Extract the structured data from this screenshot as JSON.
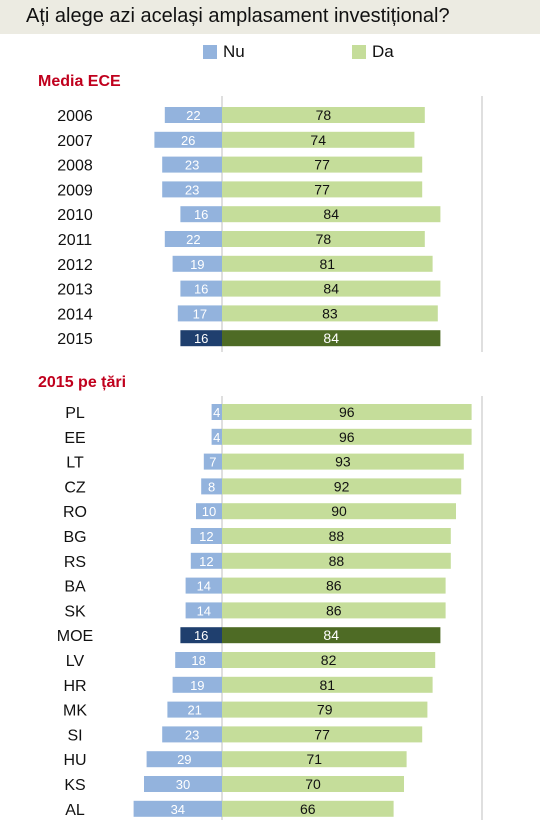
{
  "title": "Ați alege azi același amplasament investițional?",
  "legend": {
    "nu": "Nu",
    "da": "Da"
  },
  "colors": {
    "nu": "#93b3dd",
    "da": "#c5dd9a",
    "nu_highlight": "#1f3f6e",
    "da_highlight": "#4e6b25",
    "section_title": "#c0001d",
    "title_bg": "#ecebe2"
  },
  "sections": {
    "years_title": "Media ECE",
    "countries_title": "2015 pe țări"
  },
  "chart_data": [
    {
      "type": "bar",
      "orientation": "horizontal-diverging",
      "title": "Media ECE",
      "categories": [
        "2006",
        "2007",
        "2008",
        "2009",
        "2010",
        "2011",
        "2012",
        "2013",
        "2014",
        "2015"
      ],
      "series": [
        {
          "name": "Nu",
          "values": [
            22,
            26,
            23,
            23,
            16,
            22,
            19,
            16,
            17,
            16
          ]
        },
        {
          "name": "Da",
          "values": [
            78,
            74,
            77,
            77,
            84,
            78,
            81,
            84,
            83,
            84
          ]
        }
      ],
      "highlight": "2015"
    },
    {
      "type": "bar",
      "orientation": "horizontal-diverging",
      "title": "2015 pe țări",
      "categories": [
        "PL",
        "EE",
        "LT",
        "CZ",
        "RO",
        "BG",
        "RS",
        "BA",
        "SK",
        "MOE",
        "LV",
        "HR",
        "MK",
        "SI",
        "HU",
        "KS",
        "AL"
      ],
      "series": [
        {
          "name": "Nu",
          "values": [
            4,
            4,
            7,
            8,
            10,
            12,
            12,
            14,
            14,
            16,
            18,
            19,
            21,
            23,
            29,
            30,
            34
          ]
        },
        {
          "name": "Da",
          "values": [
            96,
            96,
            93,
            92,
            90,
            88,
            88,
            86,
            86,
            84,
            82,
            81,
            79,
            77,
            71,
            70,
            66
          ]
        }
      ],
      "highlight": "MOE"
    }
  ]
}
